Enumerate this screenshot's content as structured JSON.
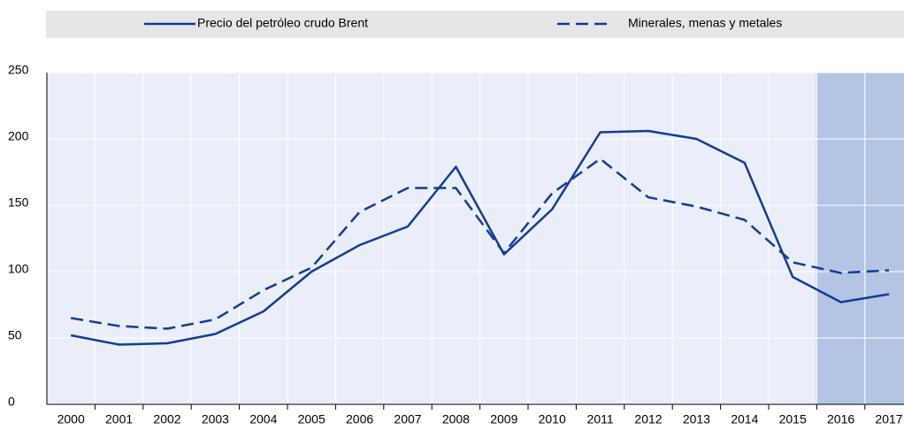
{
  "chart_data": {
    "type": "line",
    "categories": [
      "2000",
      "2001",
      "2002",
      "2003",
      "2004",
      "2005",
      "2006",
      "2007",
      "2008",
      "2009",
      "2010",
      "2011",
      "2012",
      "2013",
      "2014",
      "2015",
      "2016",
      "2017"
    ],
    "series": [
      {
        "name": "Precio del petróleo crudo Brent",
        "color": "#123c9a",
        "dash": false,
        "values": [
          52,
          45,
          46,
          53,
          70,
          100,
          120,
          134,
          179,
          113,
          147,
          205,
          206,
          200,
          182,
          96,
          77,
          83
        ]
      },
      {
        "name": "Minerales, menas y metales",
        "color": "#123c9a",
        "dash": true,
        "values": [
          65,
          59,
          57,
          64,
          86,
          103,
          145,
          163,
          163,
          114,
          159,
          185,
          156,
          149,
          139,
          107,
          99,
          101
        ]
      }
    ],
    "ylim": [
      0,
      250
    ],
    "yticks": [
      0,
      50,
      100,
      150,
      200,
      250
    ],
    "grid": true,
    "shaded_from": "2016",
    "legend": "top"
  }
}
